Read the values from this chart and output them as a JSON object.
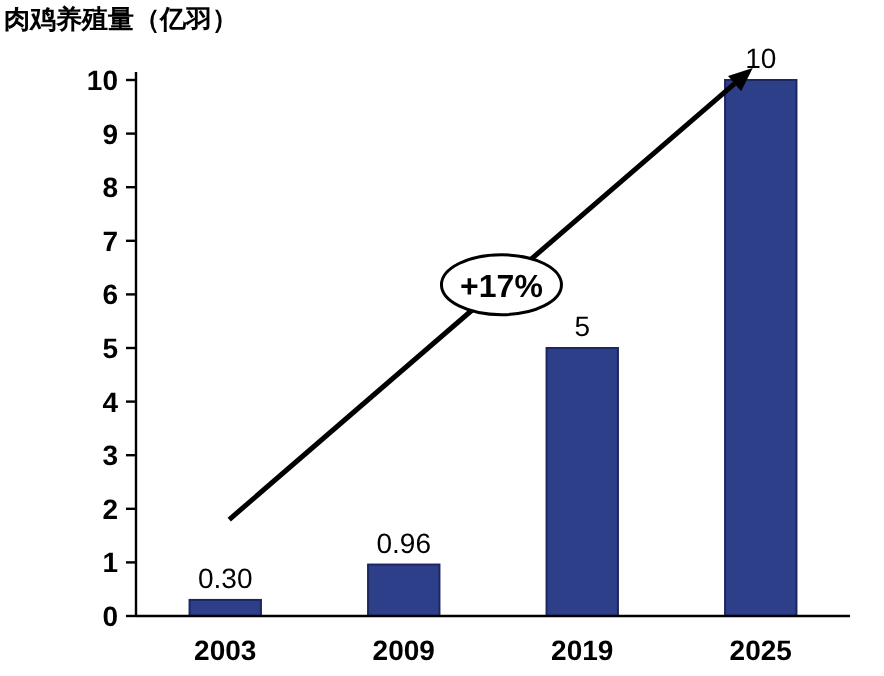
{
  "chart_data": {
    "type": "bar",
    "title": "肉鸡养殖量（亿羽）",
    "categories": [
      "2003",
      "2009",
      "2019",
      "2025"
    ],
    "values": [
      0.3,
      0.96,
      5,
      10
    ],
    "value_labels": [
      "0.30",
      "0.96",
      "5",
      "10"
    ],
    "color": "#2e3f8a",
    "ylim": [
      0,
      10
    ],
    "yticks": [
      0,
      1,
      2,
      3,
      4,
      5,
      6,
      7,
      8,
      9,
      10
    ],
    "annotations": [
      "+17%"
    ]
  }
}
